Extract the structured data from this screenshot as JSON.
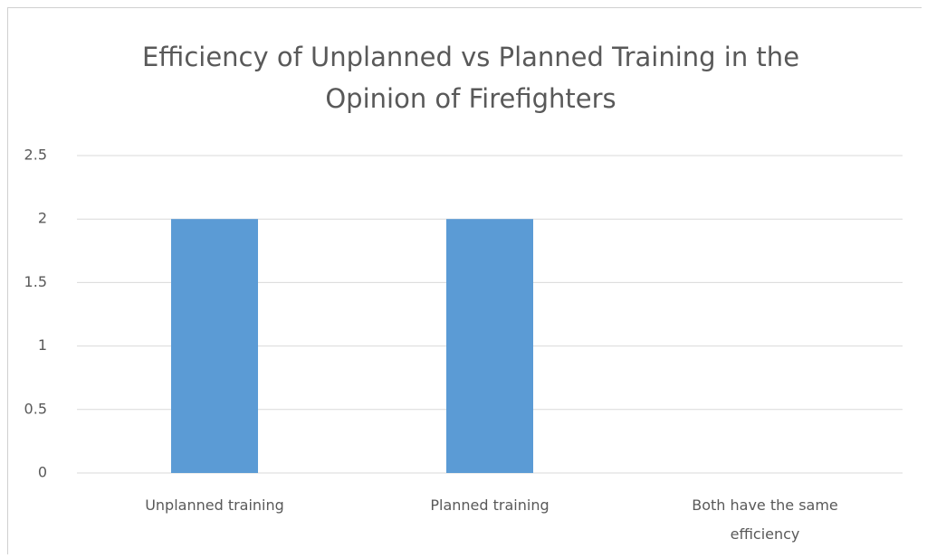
{
  "chart_data": {
    "type": "bar",
    "title": "Efficiency of Unplanned vs Planned Training in the Opinion of Firefighters",
    "categories": [
      "Unplanned training",
      "Planned training",
      "Both have the same efficiency"
    ],
    "values": [
      2,
      2,
      0
    ],
    "color": "#5b9bd5",
    "ylim": [
      0,
      2.5
    ],
    "yticks": [
      0,
      0.5,
      1,
      1.5,
      2,
      2.5
    ],
    "grid": true
  }
}
